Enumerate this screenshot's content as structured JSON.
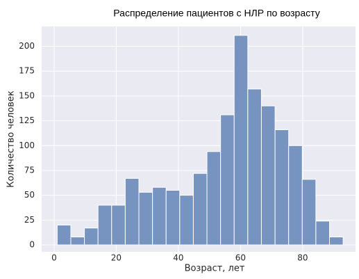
{
  "chart_data": {
    "type": "histogram",
    "title": "Распределение пациентов с НЛР по возрасту",
    "xlabel": "Возраст, лет",
    "ylabel": "Количество человек",
    "bins": [
      1,
      5.38,
      9.76,
      14.14,
      18.52,
      22.9,
      27.29,
      31.67,
      36.05,
      40.43,
      44.81,
      49.19,
      53.57,
      57.95,
      62.33,
      66.71,
      71.1,
      75.48,
      79.86,
      84.24,
      88.62,
      93
    ],
    "values": [
      20,
      8,
      17,
      40,
      40,
      67,
      53,
      58,
      55,
      50,
      72,
      94,
      131,
      211,
      157,
      140,
      116,
      100,
      66,
      24,
      8
    ],
    "color": "#7793bf",
    "xlim": [
      -4,
      97
    ],
    "ylim": [
      -7,
      220
    ],
    "xticks": [
      0,
      20,
      40,
      60,
      80
    ],
    "yticks": [
      0,
      25,
      50,
      75,
      100,
      125,
      150,
      175,
      200
    ],
    "grid": true
  }
}
